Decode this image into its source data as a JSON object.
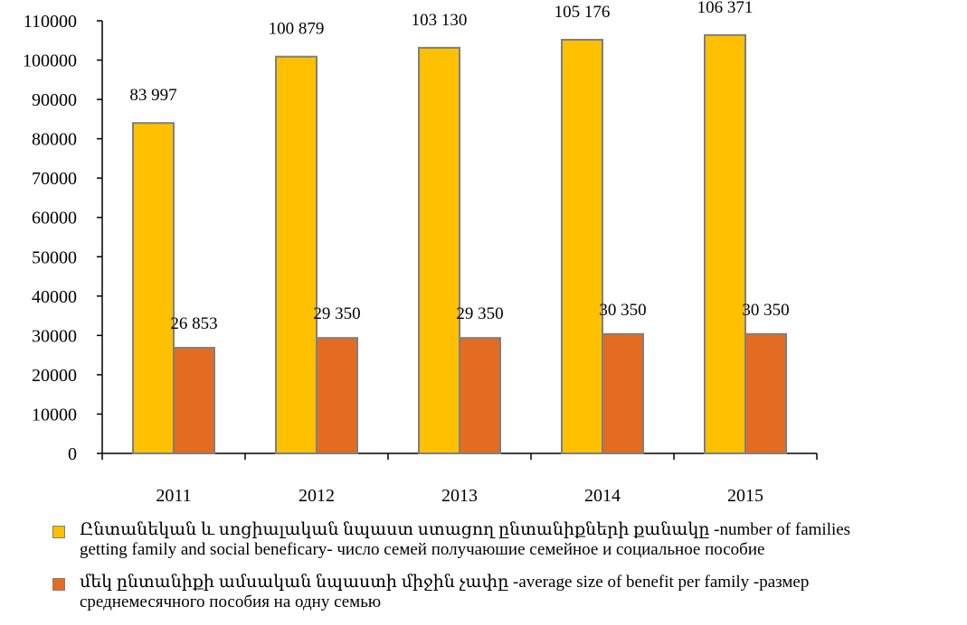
{
  "chart_data": {
    "type": "bar",
    "categories": [
      "2011",
      "2012",
      "2013",
      "2014",
      "2015"
    ],
    "series": [
      {
        "name": "Ընտանեկան և սոցիալական նպաստ ստացող ընտանիքների քանակը -number of families getting  family  and social beneficary- число семей получаюшие семейное и социальное пособие",
        "values": [
          83997,
          100879,
          103130,
          105176,
          106371
        ],
        "labels": [
          "83 997",
          "100 879",
          "103 130",
          "105 176",
          "106 371"
        ],
        "color": "#FFC000"
      },
      {
        "name": "մեկ ընտանիքի ամսական նպաստի միջին չափը -average size of  benefit per family -размер среднемесячного пособия на одну семью",
        "values": [
          26853,
          29350,
          29350,
          30350,
          30350
        ],
        "labels": [
          "26 853",
          "29 350",
          "29 350",
          "30 350",
          "30 350"
        ],
        "color": "#E46C22"
      }
    ],
    "ylim": [
      0,
      110000
    ],
    "yticks": [
      "0",
      "10000",
      "20000",
      "30000",
      "40000",
      "50000",
      "60000",
      "70000",
      "80000",
      "90000",
      "100000",
      "110000"
    ],
    "grid": false,
    "legend_position": "bottom"
  },
  "legend": {
    "items": [
      {
        "line1": "Ընտանեկան և սոցիալական նպաստ ստացող ընտանիքների քանակը -number of families",
        "line2": "getting  family  and social beneficary- число семей получаюшие семейное и социальное пособие"
      },
      {
        "line1": "մեկ ընտանիքի ամսական նպաստի միջին չափը -average size of  benefit per family -размер",
        "line2": "среднемесячного пособия на одну семью"
      }
    ]
  }
}
